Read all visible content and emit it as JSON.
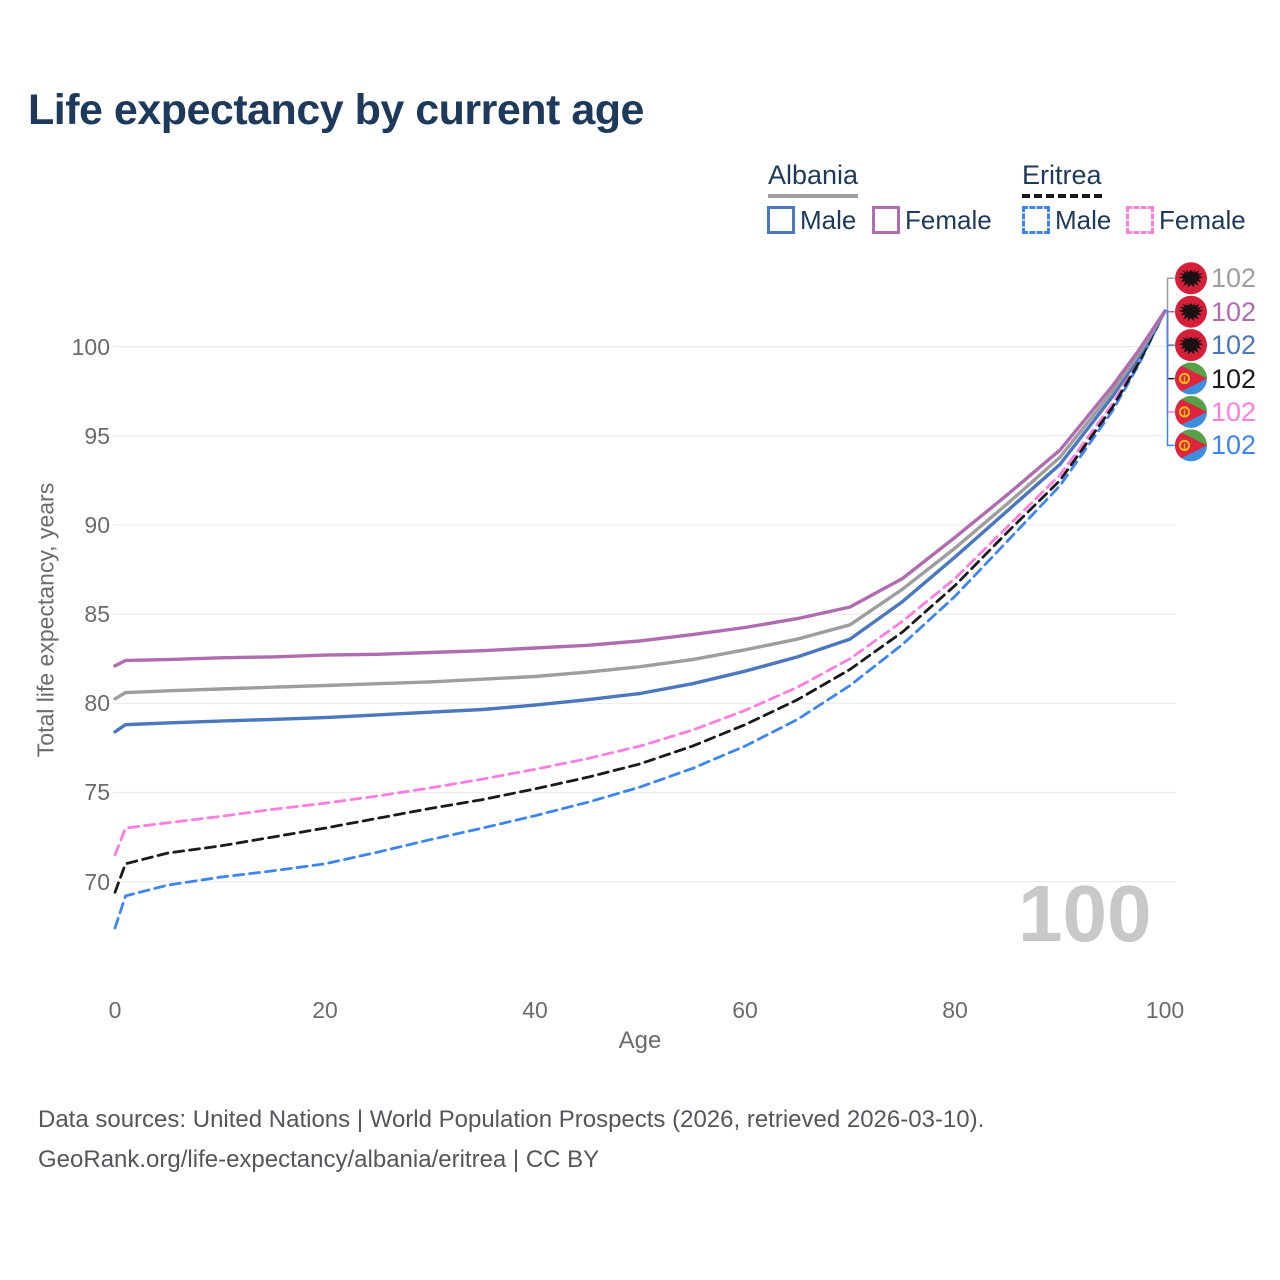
{
  "title": "Life expectancy by current age",
  "legend": {
    "groups": [
      {
        "name": "Albania",
        "line_style": "solid",
        "line_color": "#9e9e9e",
        "items": [
          {
            "label": "Male",
            "color": "#4a77bd"
          },
          {
            "label": "Female",
            "color": "#b06cb0"
          }
        ]
      },
      {
        "name": "Eritrea",
        "line_style": "dashed",
        "line_color": "#1a1a1a",
        "items": [
          {
            "label": "Male",
            "color": "#3d86f0"
          },
          {
            "label": "Female",
            "color": "#fb7ee0"
          }
        ]
      }
    ]
  },
  "chart_data": {
    "type": "line",
    "title": "Life expectancy by current age",
    "xlabel": "Age",
    "ylabel": "Total life expectancy, years",
    "xlim": [
      0,
      100
    ],
    "ylim": [
      66,
      103
    ],
    "x_ticks": [
      0,
      20,
      40,
      60,
      80,
      100
    ],
    "y_ticks": [
      70,
      75,
      80,
      85,
      90,
      95,
      100
    ],
    "grid": "horizontal",
    "legend_position": "top-right",
    "age_indicator": "100",
    "x": [
      0,
      1,
      5,
      10,
      15,
      20,
      25,
      30,
      35,
      40,
      45,
      50,
      55,
      60,
      65,
      70,
      75,
      80,
      85,
      90,
      95,
      97.5,
      100
    ],
    "series": [
      {
        "name": "Albania",
        "color": "#9e9e9e",
        "dash": "solid",
        "end_label": "102",
        "values": [
          80.25,
          80.6,
          80.7,
          80.8,
          80.9,
          81.0,
          81.1,
          81.2,
          81.35,
          81.5,
          81.75,
          82.05,
          82.45,
          83.0,
          83.6,
          84.4,
          86.4,
          88.7,
          91.2,
          93.8,
          97.5,
          99.6,
          102
        ]
      },
      {
        "name": "Albania Female",
        "color": "#b06cb0",
        "dash": "solid",
        "end_label": "102",
        "values": [
          82.1,
          82.4,
          82.45,
          82.55,
          82.6,
          82.7,
          82.75,
          82.85,
          82.95,
          83.1,
          83.25,
          83.5,
          83.85,
          84.25,
          84.75,
          85.4,
          87.0,
          89.3,
          91.7,
          94.2,
          97.8,
          99.8,
          102
        ]
      },
      {
        "name": "Albania Male",
        "color": "#4a77bd",
        "dash": "solid",
        "end_label": "102",
        "values": [
          78.4,
          78.8,
          78.9,
          79.0,
          79.1,
          79.2,
          79.35,
          79.5,
          79.65,
          79.9,
          80.2,
          80.55,
          81.1,
          81.8,
          82.6,
          83.6,
          85.7,
          88.2,
          90.8,
          93.4,
          97.2,
          99.4,
          102
        ]
      },
      {
        "name": "Eritrea",
        "color": "#1a1a1a",
        "dash": "dashed",
        "end_label": "102",
        "values": [
          69.4,
          71.0,
          71.6,
          72.0,
          72.5,
          73.0,
          73.55,
          74.1,
          74.6,
          75.2,
          75.85,
          76.6,
          77.6,
          78.8,
          80.2,
          81.9,
          84.0,
          86.6,
          89.6,
          92.5,
          96.6,
          99.1,
          102
        ]
      },
      {
        "name": "Eritrea Female",
        "color": "#fb7ee0",
        "dash": "dashed",
        "end_label": "102",
        "values": [
          71.5,
          73.0,
          73.3,
          73.65,
          74.05,
          74.4,
          74.8,
          75.25,
          75.75,
          76.3,
          76.9,
          77.6,
          78.5,
          79.6,
          80.9,
          82.5,
          84.6,
          87.0,
          89.9,
          92.8,
          96.8,
          99.2,
          102
        ]
      },
      {
        "name": "Eritrea Male",
        "color": "#3d86f0",
        "dash": "dashed",
        "end_label": "102",
        "values": [
          67.4,
          69.2,
          69.8,
          70.25,
          70.6,
          71.0,
          71.65,
          72.35,
          73.0,
          73.7,
          74.45,
          75.3,
          76.35,
          77.6,
          79.1,
          81.0,
          83.3,
          86.0,
          89.1,
          92.2,
          96.4,
          99.0,
          102
        ]
      }
    ]
  },
  "right_labels": [
    {
      "country": "Albania",
      "flag": "albania",
      "value": "102",
      "color": "#9e9e9e"
    },
    {
      "country": "Albania",
      "flag": "albania",
      "value": "102",
      "color": "#b06cb0"
    },
    {
      "country": "Albania",
      "flag": "albania",
      "value": "102",
      "color": "#4a77bd"
    },
    {
      "country": "Eritrea",
      "flag": "eritrea",
      "value": "102",
      "color": "#1a1a1a"
    },
    {
      "country": "Eritrea",
      "flag": "eritrea",
      "value": "102",
      "color": "#fb7ee0"
    },
    {
      "country": "Eritrea",
      "flag": "eritrea",
      "value": "102",
      "color": "#3d86f0"
    }
  ],
  "footer": {
    "line1": "Data sources: United Nations | World Population Prospects (2026, retrieved 2026-03-10).",
    "line2": "GeoRank.org/life-expectancy/albania/eritrea | CC BY"
  }
}
